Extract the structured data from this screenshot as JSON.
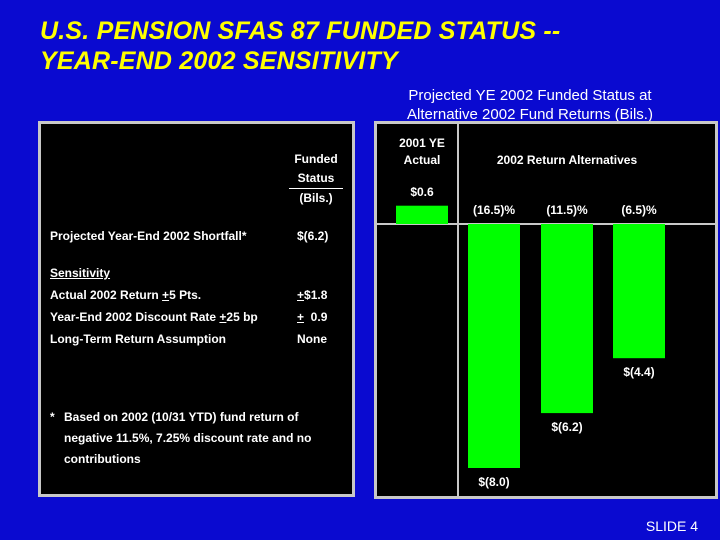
{
  "title": {
    "line1": "U.S. PENSION SFAS 87 FUNDED STATUS --",
    "line2": "YEAR-END 2002 SENSITIVITY"
  },
  "chart_caption": {
    "line1": "Projected YE 2002 Funded Status at",
    "line2": "Alternative 2002 Fund Returns (Bils.)"
  },
  "table": {
    "header": [
      "Funded",
      "Status",
      "(Bils.)"
    ],
    "projected_label": "Projected Year-End 2002 Shortfall*",
    "projected_value": "$(6.2)",
    "sensitivity_heading": "Sensitivity",
    "rows": [
      {
        "pre": "Actual 2002 Return ",
        "pm": "+",
        "post": "5 Pts.",
        "val_pm": "+",
        "val": "$1.8"
      },
      {
        "pre": "Year-End 2002 Discount Rate ",
        "pm": "+",
        "post": "25 bp",
        "val_pm": "+",
        "val": "  0.9"
      },
      {
        "pre": "Long-Term Return Assumption",
        "pm": "",
        "post": "",
        "val_pm": "",
        "val": "None"
      }
    ],
    "footnote_star": "*",
    "footnote_text": "Based on 2002 (10/31 YTD) fund return of negative 11.5%, 7.25% discount rate and no contributions"
  },
  "chart_data": {
    "type": "bar",
    "group_headers": [
      "2001 YE Actual",
      "2002 Return Alternatives"
    ],
    "categories": [
      "2001 YE Actual",
      "(16.5)%",
      "(11.5)%",
      "(6.5)%"
    ],
    "values": [
      0.6,
      -8.0,
      -6.2,
      -4.4
    ],
    "value_labels": [
      "$0.6",
      "$(8.0)",
      "$(6.2)",
      "$(4.4)"
    ],
    "ylabel": "Funded Status (Bils.)",
    "bar_color": "#00FF00"
  },
  "slide_number": "SLIDE 4"
}
